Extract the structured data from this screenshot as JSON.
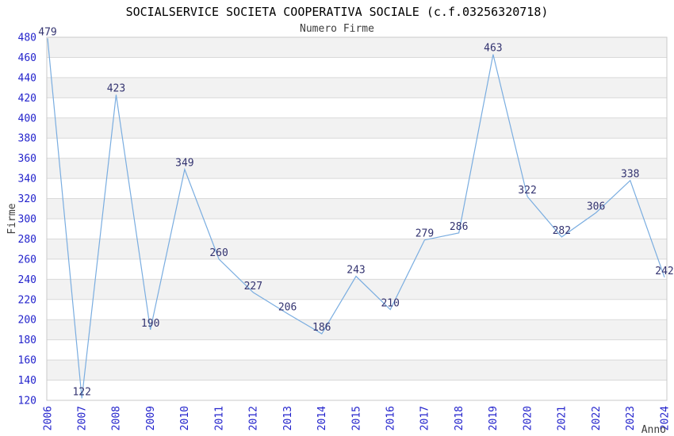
{
  "page": {
    "title": "SOCIALSERVICE SOCIETA COOPERATIVA SOCIALE (c.f.03256320718)",
    "subtitle": "Numero Firme"
  },
  "chart_data": {
    "type": "line",
    "title": "SOCIALSERVICE SOCIETA COOPERATIVA SOCIALE (c.f.03256320718)",
    "subtitle": "Numero Firme",
    "xlabel": "Anno",
    "ylabel": "Firme",
    "categories": [
      "2006",
      "2007",
      "2008",
      "2009",
      "2010",
      "2011",
      "2012",
      "2013",
      "2014",
      "2015",
      "2016",
      "2017",
      "2018",
      "2019",
      "2020",
      "2021",
      "2022",
      "2023",
      "2024"
    ],
    "values": [
      479,
      122,
      423,
      190,
      349,
      260,
      227,
      206,
      186,
      243,
      210,
      279,
      286,
      463,
      322,
      282,
      306,
      338,
      242
    ],
    "ylim": [
      120,
      480
    ],
    "ytick_step": 20,
    "grid": "horizontal",
    "banding": "alternating-gray-white-from-top",
    "legend": "none",
    "data_labels": "above-points",
    "x_tick_rotation": -90,
    "styles": {
      "line_color": "#7aade0",
      "tick_label_color": "#2323cc",
      "data_label_color": "#333370",
      "axis_title_color": "#3d3d3d",
      "title_color": "#000000",
      "subtitle_color": "#3d3d3d",
      "band_color": "#f2f2f2",
      "gridline_color": "#d9d9d9",
      "frame_color": "#c9c9c9",
      "background": "#ffffff"
    }
  }
}
